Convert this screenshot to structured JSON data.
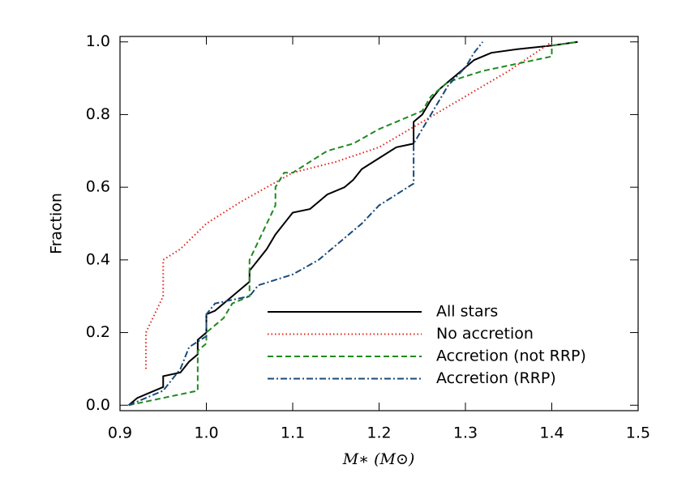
{
  "chart_data": {
    "type": "line",
    "xlabel": "M∗ (M⊙)",
    "ylabel": "Fraction",
    "xlim": [
      0.9,
      1.5
    ],
    "ylim": [
      -0.015,
      1.015
    ],
    "xticks": [
      0.9,
      {
        "value": 1.0,
        "label": "1.0"
      },
      1.1,
      1.2,
      1.3,
      1.4,
      1.5
    ],
    "yticks": [
      {
        "value": 0.0,
        "label": "0.0"
      },
      0.2,
      0.4,
      0.6,
      0.8,
      {
        "value": 1.0,
        "label": "1.0"
      }
    ],
    "legend": "lower right",
    "series": [
      {
        "name": "All stars",
        "color": "#000000",
        "dash": "solid",
        "x": [
          0.91,
          0.92,
          0.93,
          0.95,
          0.95,
          0.97,
          0.98,
          0.99,
          0.99,
          1.0,
          1.0,
          1.01,
          1.02,
          1.03,
          1.04,
          1.05,
          1.05,
          1.06,
          1.07,
          1.08,
          1.09,
          1.1,
          1.12,
          1.13,
          1.14,
          1.16,
          1.17,
          1.18,
          1.2,
          1.22,
          1.24,
          1.24,
          1.25,
          1.26,
          1.27,
          1.28,
          1.29,
          1.3,
          1.31,
          1.33,
          1.36,
          1.4,
          1.43
        ],
        "values": [
          0.0,
          0.02,
          0.03,
          0.05,
          0.08,
          0.09,
          0.12,
          0.14,
          0.18,
          0.2,
          0.25,
          0.26,
          0.28,
          0.3,
          0.32,
          0.34,
          0.37,
          0.4,
          0.43,
          0.47,
          0.5,
          0.53,
          0.54,
          0.56,
          0.58,
          0.6,
          0.62,
          0.65,
          0.68,
          0.71,
          0.72,
          0.78,
          0.8,
          0.84,
          0.87,
          0.89,
          0.91,
          0.93,
          0.95,
          0.97,
          0.98,
          0.99,
          1.0
        ]
      },
      {
        "name": "No accretion",
        "color": "#e0231c",
        "dash": "dotted",
        "x": [
          0.93,
          0.93,
          0.94,
          0.95,
          0.95,
          0.97,
          1.0,
          1.04,
          1.07,
          1.1,
          1.15,
          1.2,
          1.25,
          1.3,
          1.35,
          1.4
        ],
        "values": [
          0.1,
          0.2,
          0.25,
          0.3,
          0.4,
          0.43,
          0.5,
          0.56,
          0.6,
          0.64,
          0.67,
          0.71,
          0.78,
          0.85,
          0.92,
          1.0
        ]
      },
      {
        "name": "Accretion (not RRP)",
        "color": "#1f8a1f",
        "dash": "dashed",
        "x": [
          0.91,
          0.95,
          0.99,
          0.99,
          1.0,
          1.0,
          1.02,
          1.03,
          1.05,
          1.05,
          1.06,
          1.07,
          1.08,
          1.08,
          1.09,
          1.1,
          1.12,
          1.14,
          1.17,
          1.2,
          1.25,
          1.26,
          1.28,
          1.32,
          1.4,
          1.4,
          1.43
        ],
        "values": [
          0.0,
          0.02,
          0.04,
          0.15,
          0.17,
          0.2,
          0.24,
          0.28,
          0.3,
          0.4,
          0.45,
          0.5,
          0.55,
          0.6,
          0.64,
          0.64,
          0.67,
          0.7,
          0.72,
          0.76,
          0.81,
          0.85,
          0.89,
          0.92,
          0.96,
          0.99,
          1.0
        ]
      },
      {
        "name": "Accretion (RRP)",
        "color": "#1a4a78",
        "dash": "dashdot",
        "x": [
          0.91,
          0.95,
          0.97,
          0.98,
          1.0,
          1.0,
          1.01,
          1.05,
          1.06,
          1.1,
          1.13,
          1.15,
          1.18,
          1.2,
          1.22,
          1.24,
          1.24,
          1.26,
          1.28,
          1.3,
          1.31,
          1.32
        ],
        "values": [
          0.0,
          0.04,
          0.1,
          0.16,
          0.19,
          0.25,
          0.28,
          0.3,
          0.33,
          0.36,
          0.4,
          0.44,
          0.5,
          0.55,
          0.58,
          0.61,
          0.72,
          0.8,
          0.88,
          0.93,
          0.97,
          1.0
        ]
      }
    ]
  }
}
